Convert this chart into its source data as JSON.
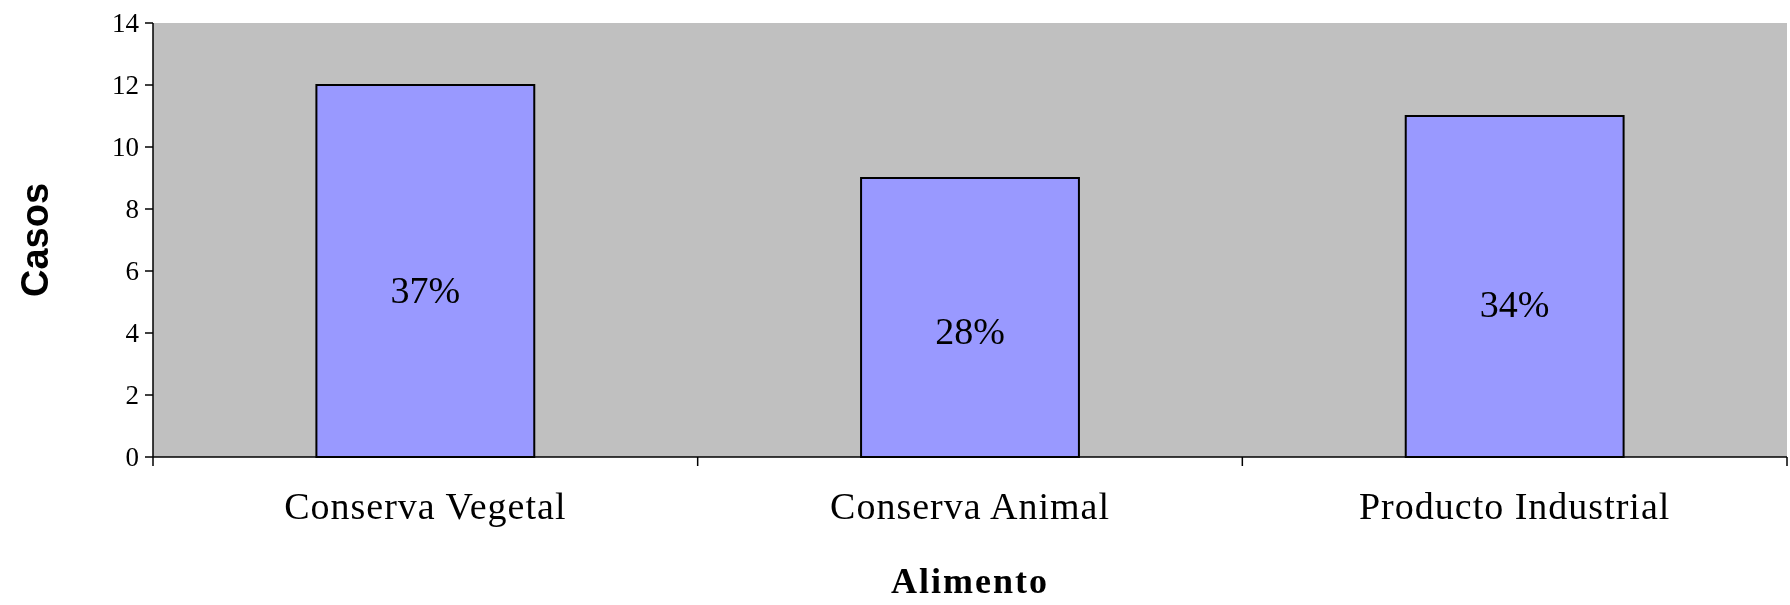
{
  "chart_data": {
    "type": "bar",
    "xlabel": "Alimento",
    "ylabel": "Casos",
    "categories": [
      "Conserva Vegetal",
      "Conserva Animal",
      "Producto Industrial"
    ],
    "values": [
      12,
      9,
      11
    ],
    "color": "#9999ff",
    "ylim": [
      0,
      14
    ],
    "yticks": [
      0,
      2,
      4,
      6,
      8,
      10,
      12,
      14
    ],
    "grid": false,
    "annotations": [
      "37%",
      "28%",
      "34%"
    ]
  }
}
